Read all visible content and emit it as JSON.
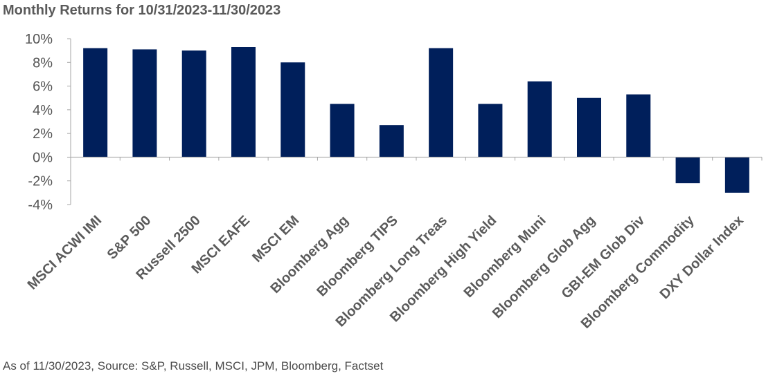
{
  "title": "Monthly Returns for 10/31/2023-11/30/2023",
  "source": "As of 11/30/2023, Source: S&P, Russell, MSCI, JPM, Bloomberg, Factset",
  "colors": {
    "bar": "#001f5b",
    "axis": "#a6a6a6",
    "text": "#5a5a5a"
  },
  "chart_data": {
    "type": "bar",
    "title": "Monthly Returns for 10/31/2023-11/30/2023",
    "xlabel": "",
    "ylabel": "",
    "ylim": [
      -4,
      10
    ],
    "yticks": [
      10,
      8,
      6,
      4,
      2,
      0,
      -2,
      -4
    ],
    "ytick_labels": [
      "10%",
      "8%",
      "6%",
      "4%",
      "2%",
      "0%",
      "-2%",
      "-4%"
    ],
    "grid": false,
    "legend": "none",
    "categories": [
      "MSCI ACWI IMI",
      "S&P 500",
      "Russell 2500",
      "MSCI EAFE",
      "MSCI EM",
      "Bloomberg Agg",
      "Bloomberg TIPS",
      "Bloomberg Long Treas",
      "Bloomberg High Yield",
      "Bloomberg Muni",
      "Bloomberg Glob Agg",
      "GBI-EM Glob Div",
      "Bloomberg Commodity",
      "DXY Dollar Index"
    ],
    "values": [
      9.2,
      9.1,
      9.0,
      9.3,
      8.0,
      4.5,
      2.7,
      9.2,
      4.5,
      6.4,
      5.0,
      5.3,
      -2.2,
      -3.0
    ]
  }
}
